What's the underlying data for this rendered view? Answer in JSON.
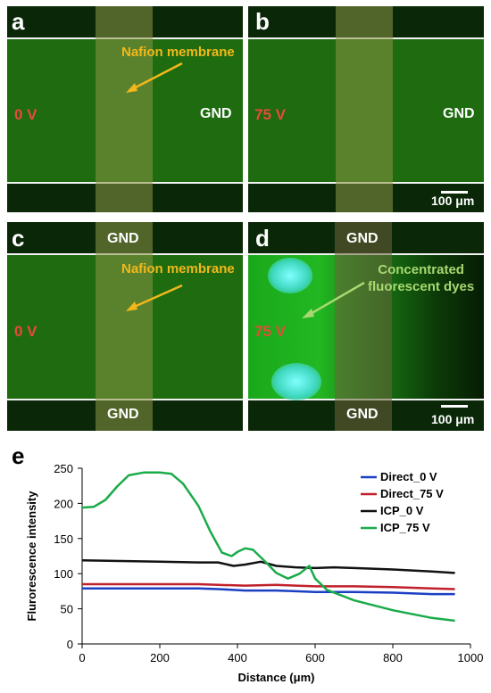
{
  "panels": {
    "a": {
      "label": "a",
      "left_voltage": "0 V",
      "right_label": "GND",
      "annotation": "Nafion membrane"
    },
    "b": {
      "label": "b",
      "left_voltage": "75 V",
      "right_label": "GND",
      "scale_bar": "100 μm"
    },
    "c": {
      "label": "c",
      "left_voltage": "0 V",
      "top_label": "GND",
      "bottom_label": "GND",
      "annotation": "Nafion membrane"
    },
    "d": {
      "label": "d",
      "left_voltage": "75 V",
      "top_label": "GND",
      "bottom_label": "GND",
      "annotation": "Concentrated\nfluorescent dyes",
      "scale_bar": "100 μm"
    }
  },
  "colors": {
    "channel_green": "#1e6b10",
    "membrane": "#8c9646",
    "voltage_red": "#e84a3a",
    "annotation_yellow": "#f2b81a",
    "annotation_green": "#a8d870"
  },
  "chart_data": {
    "panel_label": "e",
    "type": "line",
    "xlabel": "Distance (μm)",
    "ylabel": "Flurorescence intensity",
    "xlim": [
      0,
      1000
    ],
    "ylim": [
      0,
      250
    ],
    "xticks": [
      0,
      200,
      400,
      600,
      800,
      1000
    ],
    "yticks": [
      0,
      50,
      100,
      150,
      200,
      250
    ],
    "legend_position": "top-right",
    "series": [
      {
        "name": "Direct_0 V",
        "color": "#1a3fc4",
        "x": [
          0,
          100,
          200,
          300,
          350,
          420,
          500,
          550,
          600,
          700,
          800,
          900,
          960
        ],
        "y": [
          79,
          79,
          79,
          79,
          78,
          76,
          76,
          75,
          74,
          74,
          73,
          71,
          71
        ]
      },
      {
        "name": "Direct_75 V",
        "color": "#c0202a",
        "x": [
          0,
          100,
          200,
          300,
          350,
          420,
          500,
          550,
          600,
          700,
          800,
          900,
          960
        ],
        "y": [
          85,
          85,
          85,
          85,
          84,
          83,
          84,
          83,
          82,
          82,
          81,
          79,
          78
        ]
      },
      {
        "name": "ICP_0 V",
        "color": "#111111",
        "x": [
          0,
          100,
          200,
          300,
          350,
          390,
          420,
          460,
          500,
          550,
          600,
          650,
          700,
          800,
          900,
          960
        ],
        "y": [
          119,
          118,
          117,
          116,
          116,
          111,
          113,
          117,
          111,
          109,
          108,
          109,
          108,
          106,
          103,
          101
        ]
      },
      {
        "name": "ICP_75 V",
        "color": "#1aab4a",
        "x": [
          0,
          30,
          60,
          90,
          120,
          160,
          200,
          230,
          260,
          300,
          330,
          360,
          385,
          400,
          420,
          440,
          470,
          500,
          530,
          560,
          585,
          600,
          630,
          700,
          800,
          900,
          960
        ],
        "y": [
          194,
          195,
          205,
          224,
          240,
          244,
          244,
          242,
          228,
          196,
          160,
          130,
          125,
          131,
          136,
          134,
          118,
          101,
          93,
          100,
          111,
          93,
          77,
          62,
          48,
          37,
          33
        ]
      }
    ]
  }
}
